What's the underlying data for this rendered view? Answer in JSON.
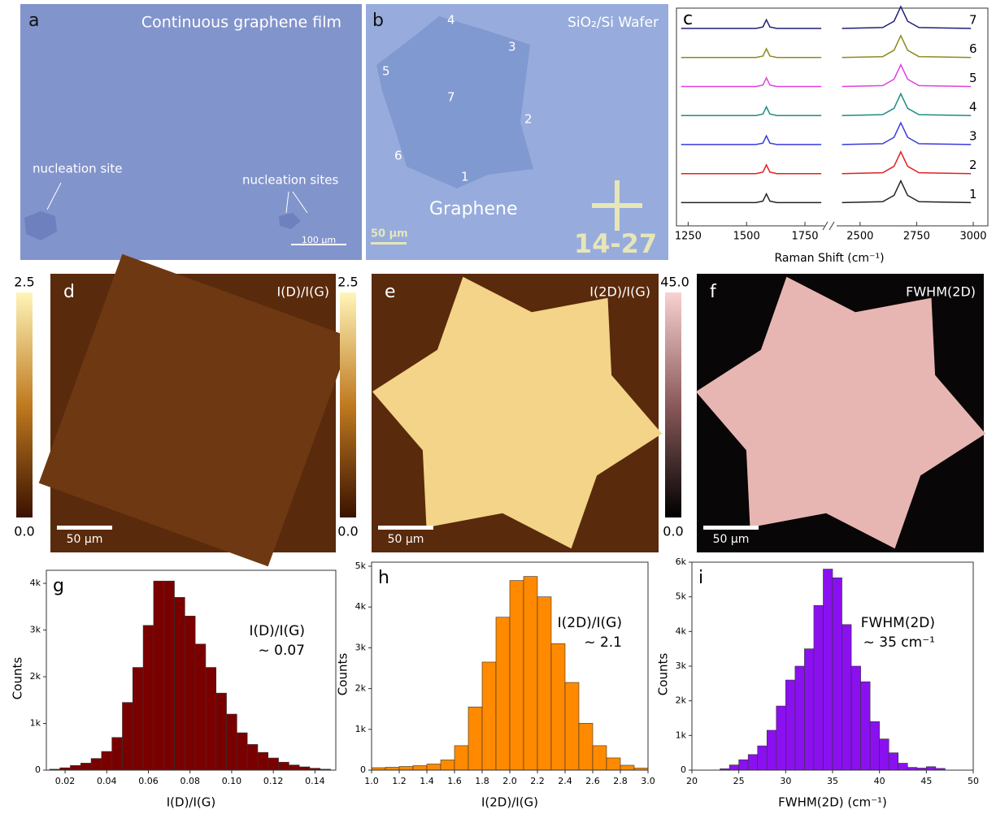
{
  "figure": {
    "a": {
      "label": "a",
      "title": "Continuous graphene film",
      "notes": [
        "nucleation site",
        "nucleation sites"
      ],
      "scale_bar": "100 μm"
    },
    "b": {
      "label": "b",
      "title": "SiO₂/Si Wafer",
      "points": [
        "4",
        "3",
        "5",
        "7",
        "2",
        "6",
        "1"
      ],
      "flake": "Graphene",
      "scale_bar": "50 μm",
      "stamp": "14-27"
    },
    "d": {
      "label": "d",
      "title": "I(D)/I(G)",
      "scale_bar": "50 μm",
      "colorbar": [
        {
          "value": 0,
          "label": "0.0"
        },
        {
          "value": 2.5,
          "label": "2.5"
        }
      ]
    },
    "e": {
      "label": "e",
      "title": "I(2D)/I(G)",
      "scale_bar": "50 μm",
      "colorbar": [
        {
          "value": 0,
          "label": "0.0"
        },
        {
          "value": 2.5,
          "label": "2.5"
        }
      ]
    },
    "f": {
      "label": "f",
      "title": "FWHM(2D)",
      "scale_bar": "50 μm",
      "colorbar": [
        {
          "value": 0,
          "label": "0.0"
        },
        {
          "value": 45,
          "label": "45.0"
        }
      ]
    }
  },
  "chart_data": [
    {
      "type": "line",
      "label": "c",
      "xlabel": "Raman Shift (cm⁻¹)",
      "x": [
        1220,
        1400,
        1540,
        1570,
        1585,
        1600,
        1630,
        1820,
        2000,
        2420,
        2600,
        2650,
        2680,
        2710,
        2760,
        2990
      ],
      "xlim": [
        [
          1200,
          1830
        ],
        [
          2400,
          3000
        ]
      ],
      "xticks": [
        1250,
        1500,
        1750,
        2500,
        2750,
        3000
      ],
      "ylim": [
        0,
        7.5
      ],
      "series": [
        {
          "name": "1",
          "color": "#222222",
          "values": [
            0.8,
            0.8,
            0.8,
            0.85,
            1.1,
            0.85,
            0.8,
            0.8,
            null,
            0.8,
            0.83,
            1.05,
            1.55,
            1.05,
            0.83,
            0.8
          ]
        },
        {
          "name": "2",
          "color": "#e02020",
          "values": [
            1.8,
            1.8,
            1.8,
            1.85,
            2.1,
            1.85,
            1.8,
            1.8,
            null,
            1.8,
            1.83,
            2.05,
            2.55,
            2.05,
            1.83,
            1.8
          ]
        },
        {
          "name": "3",
          "color": "#3a3adf",
          "values": [
            2.8,
            2.8,
            2.8,
            2.85,
            3.1,
            2.85,
            2.8,
            2.8,
            null,
            2.8,
            2.83,
            3.05,
            3.55,
            3.05,
            2.83,
            2.8
          ]
        },
        {
          "name": "4",
          "color": "#1e8c82",
          "values": [
            3.8,
            3.8,
            3.8,
            3.85,
            4.1,
            3.85,
            3.8,
            3.8,
            null,
            3.8,
            3.83,
            4.05,
            4.55,
            4.05,
            3.83,
            3.8
          ]
        },
        {
          "name": "5",
          "color": "#e040e0",
          "values": [
            4.8,
            4.8,
            4.8,
            4.85,
            5.1,
            4.85,
            4.8,
            4.8,
            null,
            4.8,
            4.83,
            5.05,
            5.55,
            5.05,
            4.83,
            4.8
          ]
        },
        {
          "name": "6",
          "color": "#8c8a1e",
          "values": [
            5.8,
            5.8,
            5.8,
            5.85,
            6.1,
            5.85,
            5.8,
            5.8,
            null,
            5.8,
            5.83,
            6.05,
            6.55,
            6.05,
            5.83,
            5.8
          ]
        },
        {
          "name": "7",
          "color": "#1e1e78",
          "values": [
            6.8,
            6.8,
            6.8,
            6.85,
            7.1,
            6.85,
            6.8,
            6.8,
            null,
            6.8,
            6.83,
            7.05,
            7.55,
            7.05,
            6.83,
            6.8
          ]
        }
      ]
    },
    {
      "type": "histogram",
      "label": "g",
      "xlabel": "I(D)/I(G)",
      "ylabel": "Counts",
      "annotation": [
        "I(D)/I(G)",
        "~ 0.07"
      ],
      "color": "#7a0000",
      "bins": [
        0.0125,
        0.0175,
        0.0225,
        0.0275,
        0.0325,
        0.0375,
        0.0425,
        0.0475,
        0.0525,
        0.0575,
        0.0625,
        0.0675,
        0.0725,
        0.0775,
        0.0825,
        0.0875,
        0.0925,
        0.0975,
        0.1025,
        0.1075,
        0.1125,
        0.1175,
        0.1225,
        0.1275,
        0.1325,
        0.1375,
        0.1425,
        0.1475
      ],
      "values": [
        20,
        50,
        100,
        150,
        250,
        400,
        700,
        1450,
        2200,
        3100,
        4050,
        4050,
        3700,
        3300,
        2700,
        2200,
        1650,
        1200,
        800,
        550,
        380,
        260,
        170,
        110,
        70,
        40,
        20
      ],
      "xlim": [
        0.011,
        0.15
      ],
      "xticks": [
        0.02,
        0.04,
        0.06,
        0.08,
        {
          "value": 0.1,
          "label": "0.10"
        },
        0.12,
        0.14
      ],
      "ylim": [
        0,
        4280
      ],
      "yticks": [
        0,
        {
          "value": 1000,
          "label": "1k"
        },
        {
          "value": 2000,
          "label": "2k"
        },
        {
          "value": 3000,
          "label": "3k"
        },
        {
          "value": 4000,
          "label": "4k"
        }
      ]
    },
    {
      "type": "histogram",
      "label": "h",
      "xlabel": "I(2D)/I(G)",
      "ylabel": "Counts",
      "annotation": [
        "I(2D)/I(G)",
        "~ 2.1"
      ],
      "color": "#ff8a00",
      "bins": [
        1.0,
        1.1,
        1.2,
        1.3,
        1.4,
        1.5,
        1.6,
        1.7,
        1.8,
        1.9,
        2.0,
        2.1,
        2.2,
        2.3,
        2.4,
        2.5,
        2.6,
        2.7,
        2.8,
        2.9,
        3.0
      ],
      "values": [
        60,
        70,
        90,
        110,
        150,
        250,
        600,
        1550,
        2650,
        3750,
        4650,
        4750,
        4250,
        3100,
        2150,
        1150,
        600,
        300,
        120,
        50
      ],
      "xlim": [
        1.0,
        3.0
      ],
      "xticks": [
        {
          "value": 1,
          "label": "1.0"
        },
        1.2,
        1.4,
        1.6,
        1.8,
        {
          "value": 2,
          "label": "2.0"
        },
        2.2,
        2.4,
        2.6,
        2.8,
        {
          "value": 3,
          "label": "3.0"
        }
      ],
      "ylim": [
        0,
        5100
      ],
      "yticks": [
        0,
        {
          "value": 1000,
          "label": "1k"
        },
        {
          "value": 2000,
          "label": "2k"
        },
        {
          "value": 3000,
          "label": "3k"
        },
        {
          "value": 4000,
          "label": "4k"
        },
        {
          "value": 5000,
          "label": "5k"
        }
      ]
    },
    {
      "type": "histogram",
      "label": "i",
      "xlabel": "FWHM(2D) (cm⁻¹)",
      "ylabel": "Counts",
      "annotation": [
        "FWHM(2D)",
        "~ 35 cm⁻¹"
      ],
      "color": "#8a10f0",
      "bins": [
        23,
        24,
        25,
        26,
        27,
        28,
        29,
        30,
        31,
        32,
        33,
        34,
        35,
        36,
        37,
        38,
        39,
        40,
        41,
        42,
        43,
        44,
        45,
        46,
        47
      ],
      "values": [
        40,
        150,
        300,
        450,
        700,
        1150,
        1850,
        2600,
        3000,
        3500,
        4750,
        5800,
        5550,
        4200,
        3000,
        2550,
        1400,
        900,
        500,
        200,
        80,
        60,
        100,
        50
      ],
      "xlim": [
        20,
        50
      ],
      "xticks": [
        20,
        25,
        30,
        35,
        40,
        45,
        50
      ],
      "ylim": [
        0,
        6000
      ],
      "yticks": [
        0,
        {
          "value": 1000,
          "label": "1k"
        },
        {
          "value": 2000,
          "label": "2k"
        },
        {
          "value": 3000,
          "label": "3k"
        },
        {
          "value": 4000,
          "label": "4k"
        },
        {
          "value": 5000,
          "label": "5k"
        },
        {
          "value": 6000,
          "label": "6k"
        }
      ]
    }
  ]
}
